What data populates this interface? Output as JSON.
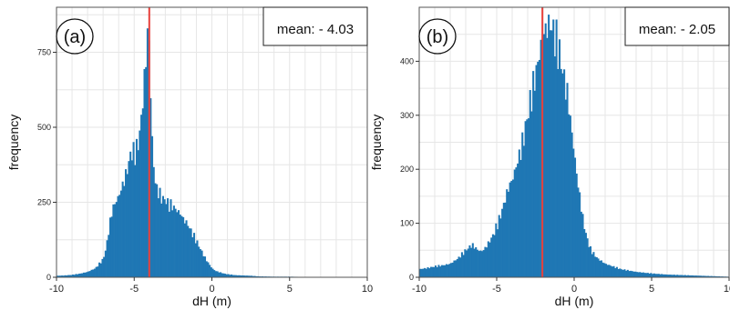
{
  "colors": {
    "bar": "#1f77b4",
    "mean_line": "#e8413c",
    "grid": "#e6e6e6",
    "frame": "#555555"
  },
  "chart_data": [
    {
      "type": "histogram",
      "panel_label": "(a)",
      "annotation": "mean: - 4.03",
      "mean": -4.03,
      "xlabel": "dH (m)",
      "ylabel": "frequency",
      "xlim": [
        -10,
        10
      ],
      "ylim": [
        0,
        900
      ],
      "xticks": [
        -10,
        -5,
        0,
        5,
        10
      ],
      "xtick_labels": [
        "-10",
        "-5",
        "0",
        "5",
        "10"
      ],
      "yticks": [
        0,
        250,
        500,
        750
      ],
      "ytick_labels": [
        "0",
        "250",
        "500",
        "750"
      ],
      "grid": true,
      "bin_width": 0.1,
      "x": [
        -10,
        -9.5,
        -9,
        -8.5,
        -8,
        -7.5,
        -7,
        -6.8,
        -6.6,
        -6.4,
        -6.2,
        -6,
        -5.8,
        -5.6,
        -5.4,
        -5.2,
        -5,
        -4.8,
        -4.6,
        -4.4,
        -4.3,
        -4.2,
        -4.1,
        -4,
        -3.9,
        -3.8,
        -3.7,
        -3.6,
        -3.4,
        -3.2,
        -3,
        -2.8,
        -2.6,
        -2.4,
        -2.2,
        -2,
        -1.8,
        -1.6,
        -1.4,
        -1.2,
        -1,
        -0.8,
        -0.6,
        -0.4,
        -0.2,
        0,
        0.2,
        0.4,
        0.6,
        0.8,
        1,
        1.5,
        2,
        2.5,
        3,
        4,
        5,
        6,
        8,
        10
      ],
      "y": [
        5,
        6,
        8,
        12,
        18,
        30,
        60,
        100,
        170,
        230,
        250,
        270,
        300,
        330,
        370,
        420,
        410,
        430,
        500,
        620,
        700,
        760,
        870,
        700,
        520,
        400,
        340,
        300,
        280,
        260,
        260,
        240,
        240,
        230,
        220,
        210,
        190,
        180,
        160,
        140,
        120,
        100,
        80,
        60,
        45,
        30,
        22,
        18,
        15,
        12,
        10,
        7,
        6,
        5,
        3,
        2,
        2,
        1,
        1,
        0
      ]
    },
    {
      "type": "histogram",
      "panel_label": "(b)",
      "annotation": "mean: - 2.05",
      "mean": -2.05,
      "xlabel": "dH (m)",
      "ylabel": "frequency",
      "xlim": [
        -10,
        10
      ],
      "ylim": [
        0,
        500
      ],
      "xticks": [
        -10,
        -5,
        0,
        5,
        10
      ],
      "xtick_labels": [
        "-10",
        "-5",
        "0",
        "5",
        "10"
      ],
      "yticks": [
        0,
        100,
        200,
        300,
        400
      ],
      "ytick_labels": [
        "0",
        "100",
        "200",
        "300",
        "400"
      ],
      "grid": true,
      "bin_width": 0.1,
      "x": [
        -10,
        -9.5,
        -9,
        -8.5,
        -8,
        -7.5,
        -7,
        -6.8,
        -6.6,
        -6.4,
        -6.2,
        -6,
        -5.8,
        -5.5,
        -5.2,
        -5,
        -4.8,
        -4.6,
        -4.4,
        -4.2,
        -4,
        -3.8,
        -3.6,
        -3.4,
        -3.2,
        -3,
        -2.8,
        -2.6,
        -2.4,
        -2.2,
        -2,
        -1.8,
        -1.6,
        -1.4,
        -1.2,
        -1,
        -0.8,
        -0.6,
        -0.4,
        -0.2,
        0,
        0.2,
        0.4,
        0.6,
        0.8,
        1,
        1.2,
        1.5,
        2,
        2.5,
        3,
        4,
        5,
        6,
        7,
        8,
        9,
        10
      ],
      "y": [
        15,
        17,
        20,
        22,
        25,
        35,
        50,
        55,
        60,
        55,
        50,
        48,
        52,
        65,
        80,
        95,
        110,
        130,
        150,
        170,
        180,
        200,
        220,
        240,
        270,
        300,
        330,
        360,
        390,
        420,
        450,
        460,
        470,
        460,
        440,
        420,
        390,
        360,
        330,
        280,
        230,
        180,
        140,
        100,
        75,
        55,
        45,
        35,
        25,
        20,
        15,
        10,
        7,
        5,
        4,
        3,
        2,
        1
      ]
    }
  ]
}
